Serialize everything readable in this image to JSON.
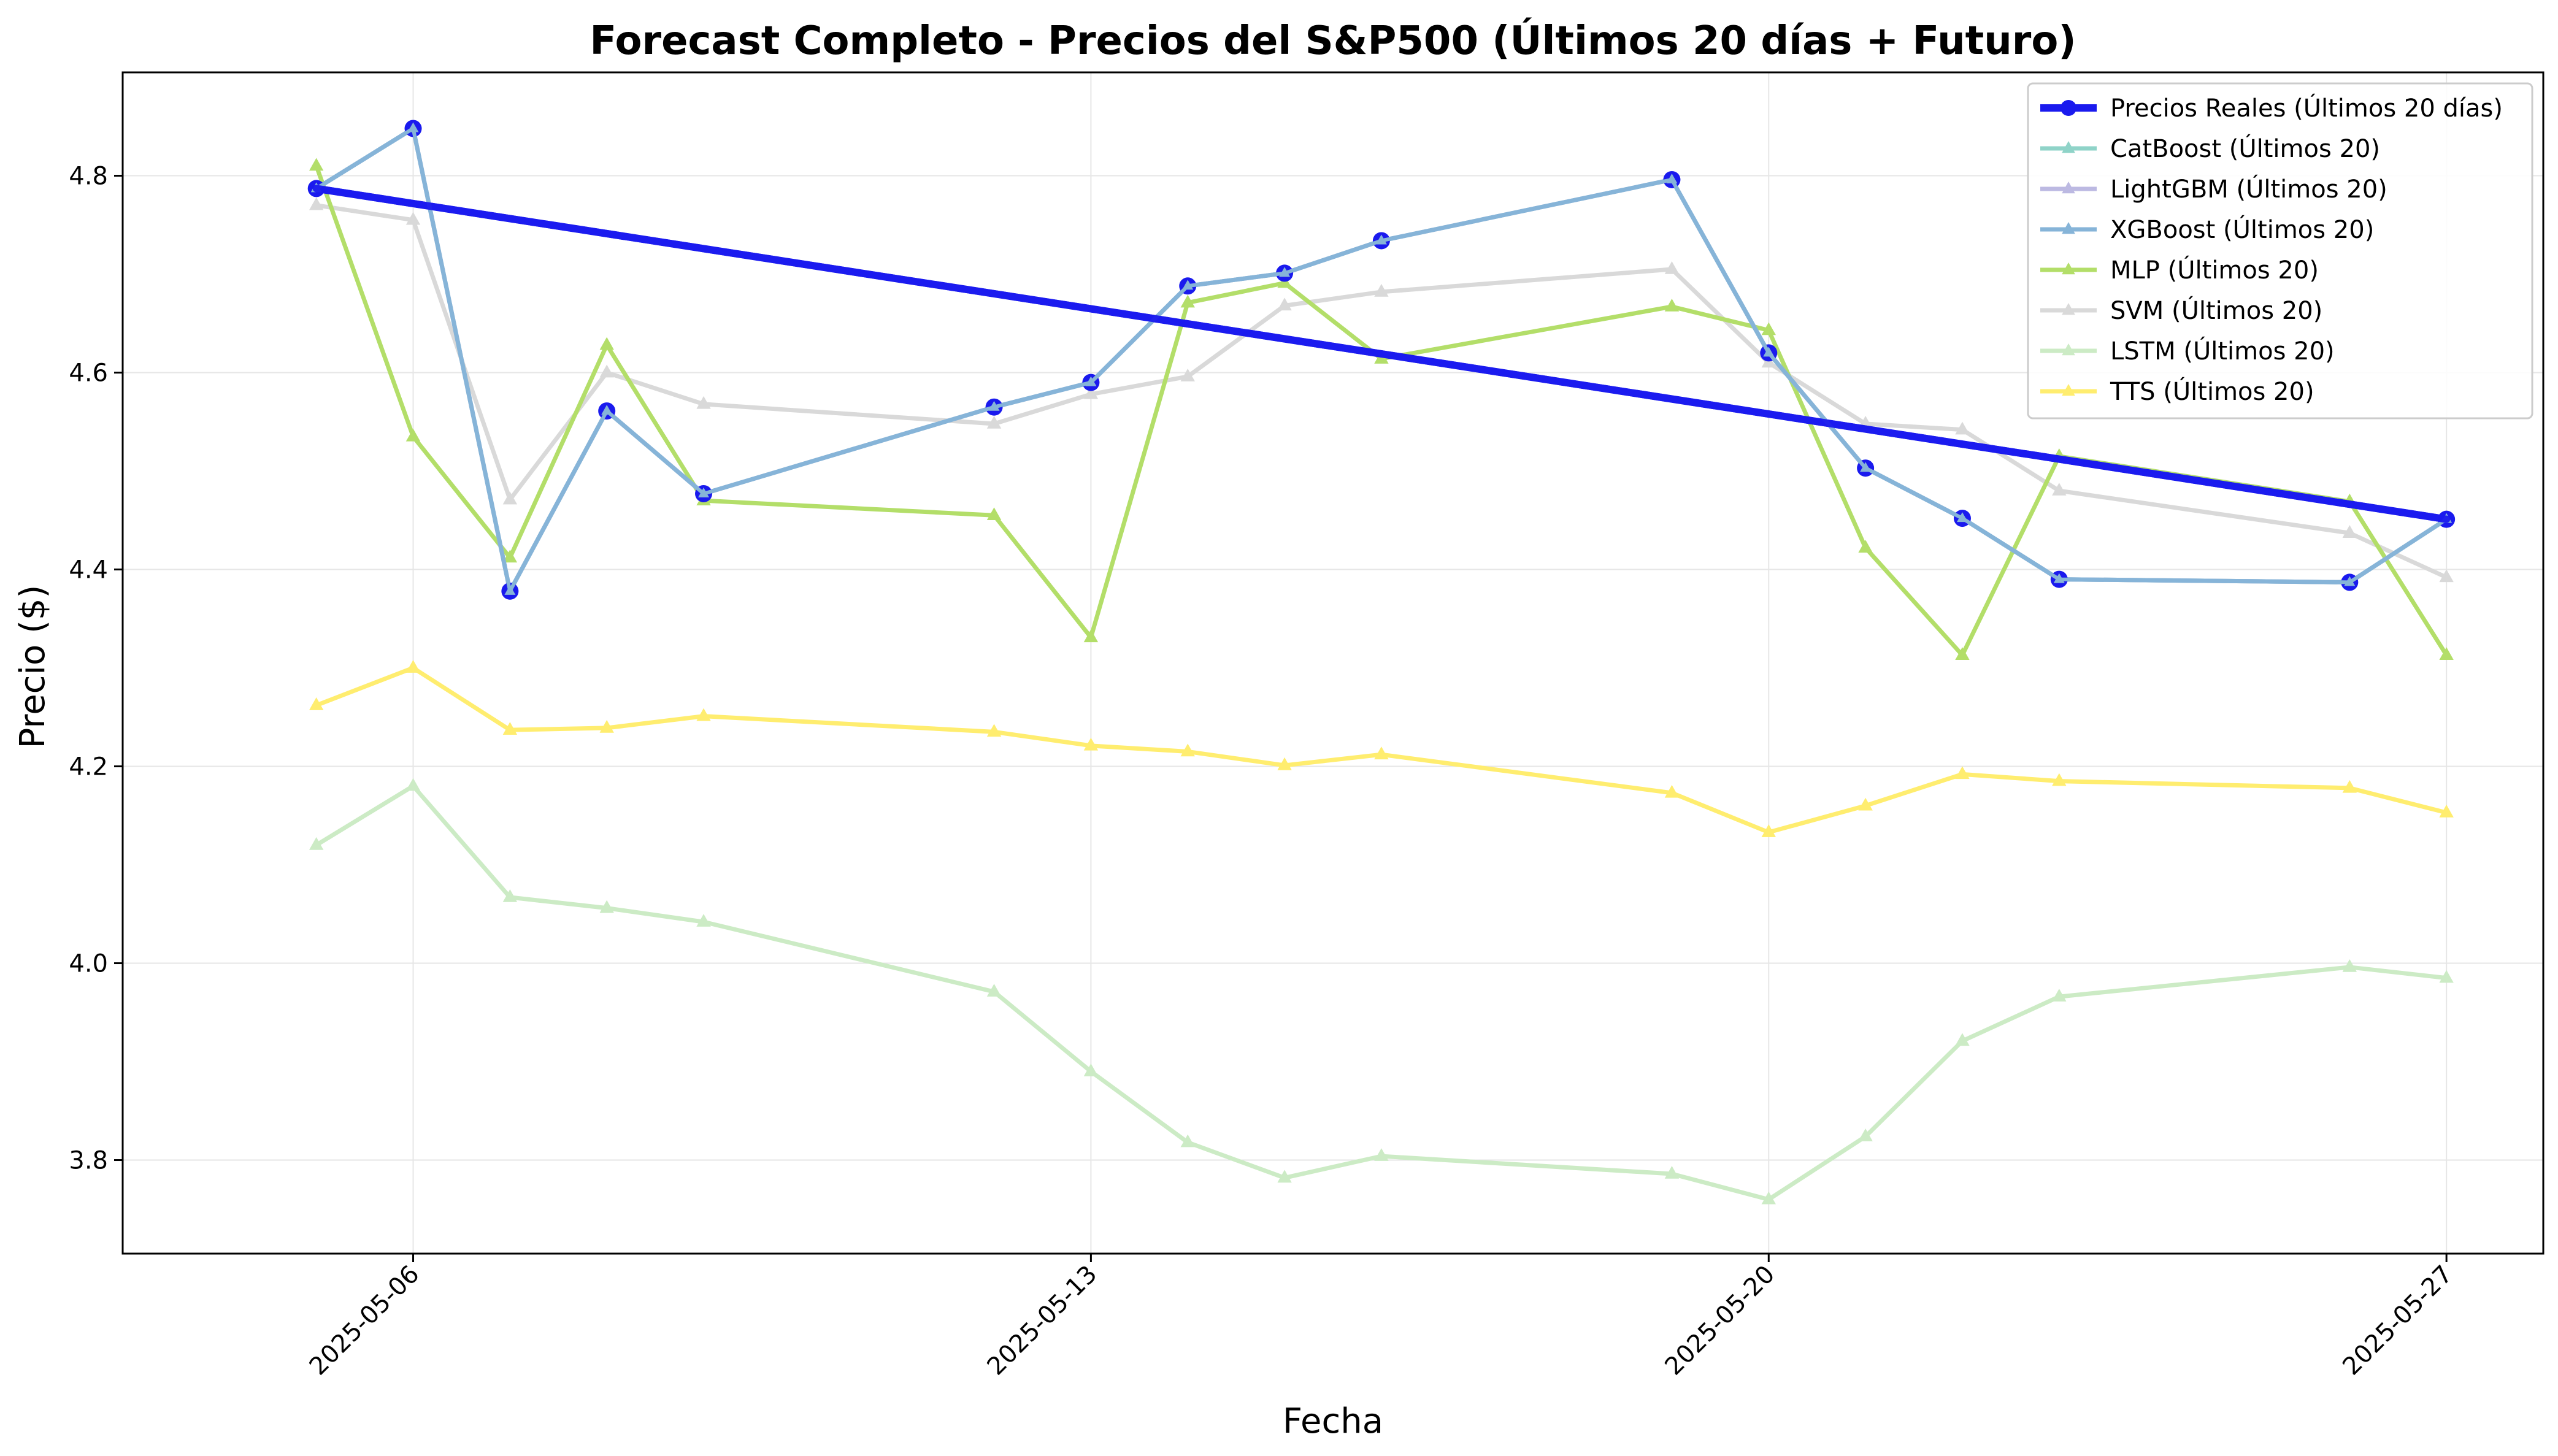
{
  "chart_data": {
    "type": "line",
    "title": "Forecast Completo - Precios del S&P500 (Últimos 20 días + Futuro)",
    "xlabel": "Fecha",
    "ylabel": "Precio ($)",
    "x_tick_labels": [
      "2025-05-06",
      "2025-05-13",
      "2025-05-20",
      "2025-05-27"
    ],
    "y_tick_labels": [
      "3.8",
      "4.0",
      "4.2",
      "4.4",
      "4.6",
      "4.8"
    ],
    "xlim": [
      "2025-05-03",
      "2025-05-28"
    ],
    "ylim": [
      3.705,
      4.905
    ],
    "grid": true,
    "legend_position": "top-right",
    "x": [
      "2025-05-05",
      "2025-05-06",
      "2025-05-07",
      "2025-05-08",
      "2025-05-09",
      "2025-05-12",
      "2025-05-13",
      "2025-05-14",
      "2025-05-15",
      "2025-05-16",
      "2025-05-19",
      "2025-05-20",
      "2025-05-21",
      "2025-05-22",
      "2025-05-23",
      "2025-05-26",
      "2025-05-27"
    ],
    "series": [
      {
        "name": "Precios Reales (Últimos 20 días)",
        "color": "#1a1aee",
        "marker": "circle",
        "x": [
          "2025-05-05",
          "2025-05-27"
        ],
        "values": [
          4.787,
          4.451
        ]
      },
      {
        "name": "CatBoost (Últimos 20)",
        "color": "#8fd3c8",
        "marker": "triangle",
        "values": [
          4.787,
          4.848,
          4.378,
          4.561,
          4.477,
          4.565,
          4.59,
          4.688,
          4.701,
          4.734,
          4.796,
          4.62,
          4.503,
          4.452,
          4.39,
          4.387,
          4.451
        ]
      },
      {
        "name": "LightGBM (Últimos 20)",
        "color": "#bcb9e2",
        "marker": "triangle",
        "values": [
          4.787,
          4.848,
          4.378,
          4.561,
          4.477,
          4.565,
          4.59,
          4.688,
          4.701,
          4.734,
          4.796,
          4.62,
          4.503,
          4.452,
          4.39,
          4.387,
          4.451
        ]
      },
      {
        "name": "XGBoost (Últimos 20)",
        "color": "#86b4d8",
        "marker": "triangle",
        "values": [
          4.787,
          4.848,
          4.378,
          4.561,
          4.477,
          4.565,
          4.59,
          4.688,
          4.701,
          4.734,
          4.796,
          4.62,
          4.503,
          4.452,
          4.39,
          4.387,
          4.451
        ]
      },
      {
        "name": "MLP (Últimos 20)",
        "color": "#b3de69",
        "marker": "triangle",
        "values": [
          4.81,
          4.535,
          4.412,
          4.628,
          4.47,
          4.455,
          4.331,
          4.671,
          4.691,
          4.614,
          4.667,
          4.643,
          4.422,
          4.313,
          4.515,
          4.469,
          4.313
        ]
      },
      {
        "name": "SVM (Últimos 20)",
        "color": "#d9d9d9",
        "marker": "triangle",
        "values": [
          4.77,
          4.755,
          4.471,
          4.6,
          4.568,
          4.548,
          4.578,
          4.596,
          4.668,
          4.682,
          4.705,
          4.61,
          4.548,
          4.542,
          4.48,
          4.437,
          4.392
        ]
      },
      {
        "name": "LSTM (Últimos 20)",
        "color": "#ccebc5",
        "marker": "triangle",
        "values": [
          4.12,
          4.18,
          4.067,
          4.056,
          4.042,
          3.971,
          3.89,
          3.818,
          3.782,
          3.804,
          3.786,
          3.76,
          3.824,
          3.921,
          3.966,
          3.996,
          3.985
        ]
      },
      {
        "name": "TTS (Últimos 20)",
        "color": "#ffed6f",
        "marker": "triangle",
        "values": [
          4.262,
          4.3,
          4.237,
          4.239,
          4.251,
          4.235,
          4.221,
          4.215,
          4.201,
          4.212,
          4.173,
          4.133,
          4.16,
          4.192,
          4.185,
          4.178,
          4.153
        ]
      }
    ]
  }
}
